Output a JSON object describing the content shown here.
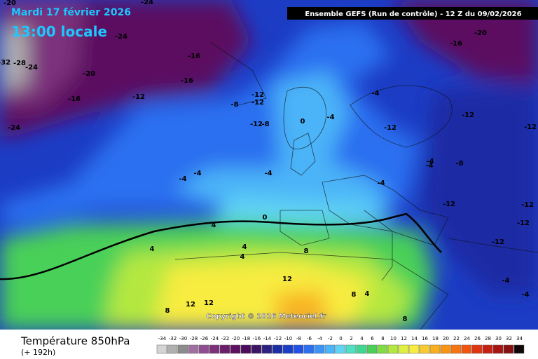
{
  "header": {
    "date": "Mardi 17 février 2026",
    "time": "13:00 locale",
    "run": "Ensemble GEFS  (Run de contrôle)  -  12 Z du 09/02/2026"
  },
  "map": {
    "contour_labels": [
      "-20",
      "-24",
      "-32",
      "-28",
      "-24",
      "-20",
      "-16",
      "-24",
      "-16",
      "-12",
      "-16",
      "-24",
      "-12",
      "-8",
      "-12",
      "-12",
      "-8",
      "-4",
      "-4",
      "0",
      "-12",
      "-4",
      "-4",
      "-4",
      "-4",
      "-4",
      "-12",
      "-4",
      "-8",
      "-12",
      "-12",
      "-12",
      "-20",
      "-16",
      "0",
      "4",
      "4",
      "4",
      "8",
      "4",
      "12",
      "12",
      "12",
      "8",
      "8",
      "4",
      "8",
      "-4",
      "-12",
      "-12",
      "-4"
    ],
    "copyright": "Copyright © 2026 Meteociel.fr"
  },
  "footer": {
    "title": "Température 850hPa",
    "subtitle": "(+ 192h)"
  },
  "scale": {
    "values": [
      -34,
      -32,
      -30,
      -28,
      -26,
      -24,
      -22,
      -20,
      -18,
      -16,
      -14,
      -12,
      -10,
      -8,
      -6,
      -4,
      -2,
      0,
      2,
      4,
      6,
      8,
      10,
      12,
      14,
      16,
      18,
      20,
      22,
      24,
      26,
      28,
      30,
      32,
      34
    ],
    "colors": [
      "#d4d4d4",
      "#b0b0b0",
      "#8c8c8c",
      "#a070a0",
      "#904c90",
      "#7c307c",
      "#6c1e6c",
      "#5c1060",
      "#4c0c5c",
      "#3c1464",
      "#2c2080",
      "#1c2ca4",
      "#1a3cc8",
      "#2050e4",
      "#2a70f0",
      "#3a94f8",
      "#4cb4f8",
      "#60d4f4",
      "#50e0c4",
      "#40d890",
      "#48d058",
      "#80dc40",
      "#b4e840",
      "#e0f040",
      "#f8ec40",
      "#f8cc30",
      "#f8b020",
      "#f89414",
      "#f87410",
      "#f05410",
      "#e03410",
      "#c82010",
      "#a81410",
      "#881010",
      "#100808"
    ]
  }
}
